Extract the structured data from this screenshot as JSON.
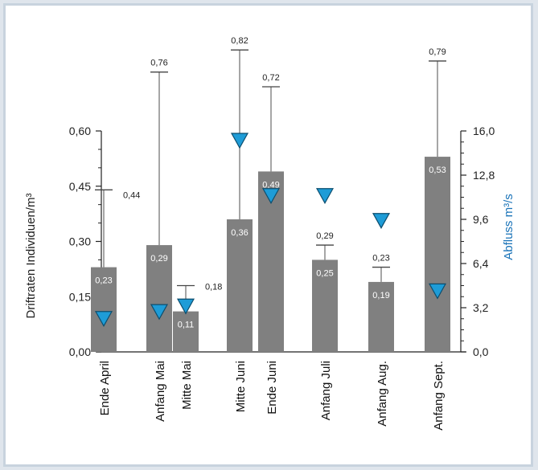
{
  "chart_data": {
    "type": "bar",
    "title": "",
    "categories": [
      "Ende April",
      "Anfang Mai",
      "Mitte Mai",
      "Mitte Juni",
      "Ende Juni",
      "Anfang Juli",
      "Anfang Aug.",
      "Anfang Sept."
    ],
    "series": [
      {
        "values": [
          0.23,
          0.29,
          0.11,
          0.36,
          0.49,
          0.25,
          0.19,
          0.53
        ],
        "labels": [
          "0,23",
          "0,29",
          "0,11",
          "0,36",
          "0,49",
          "0,25",
          "0,19",
          "0,53"
        ],
        "error_upper": [
          0.44,
          0.76,
          0.18,
          0.82,
          0.72,
          0.29,
          0.23,
          0.79
        ],
        "error_upper_labels": [
          "0,44",
          "0,76",
          "0,18",
          "0,82",
          "0,72",
          "0,29",
          "0,23",
          "0,79"
        ],
        "color": "#808080"
      },
      {
        "axis": "right",
        "marker": "triangle-down",
        "values": [
          2.4,
          2.9,
          3.3,
          15.3,
          11.3,
          11.3,
          9.5,
          4.4
        ],
        "color": "#1e9cd7"
      }
    ],
    "ylabel": "Driftraten Individuen/m³",
    "ylabel_right": "Abfluss m³/s",
    "ylim": [
      0,
      0.6
    ],
    "ylim_right": [
      0,
      16
    ],
    "yticks": [
      "0,00",
      "0,15",
      "0,30",
      "0,45",
      "0,60"
    ],
    "yticks_right": [
      "0,0",
      "3,2",
      "6,4",
      "9,6",
      "12,8",
      "16,0"
    ],
    "grid": false,
    "legend": "none"
  }
}
